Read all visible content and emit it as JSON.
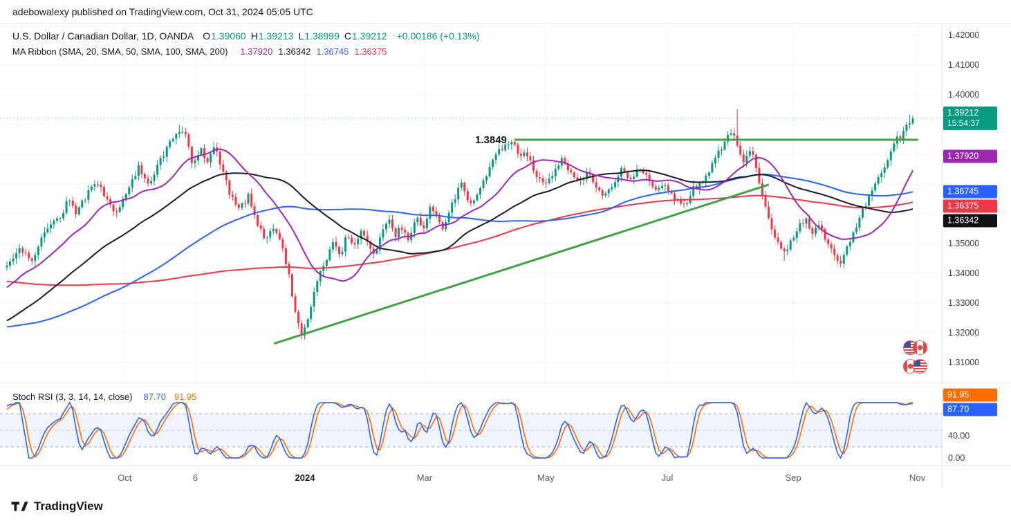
{
  "attribution": "adebowalexy published on TradingView.com, Oct 31, 2024 05:05 UTC",
  "logo_text": "TradingView",
  "header": {
    "symbol_title": "U.S. Dollar / Canadian Dollar, 1D, OANDA",
    "ohlc": [
      {
        "label": "O",
        "value": "1.39060"
      },
      {
        "label": "H",
        "value": "1.39213"
      },
      {
        "label": "L",
        "value": "1.38999"
      },
      {
        "label": "C",
        "value": "1.39212"
      }
    ],
    "change": "+0.00186 (+0.13%)",
    "up_color": "#089981",
    "down_color": "#f23645",
    "ma_label": "MA Ribbon (SMA, 20, SMA, 50, SMA, 100, SMA, 200)",
    "ma_values": [
      {
        "name": "SMA 20",
        "value": "1.37920",
        "color": "#9c27b0"
      },
      {
        "name": "SMA 50",
        "value": "1.36342",
        "color": "#131722"
      },
      {
        "name": "SMA 100",
        "value": "1.36745",
        "color": "#2962ff"
      },
      {
        "name": "SMA 200",
        "value": "1.36375",
        "color": "#f23645"
      }
    ]
  },
  "price_scale": {
    "ticks": [
      "1.42000",
      "1.41000",
      "1.40000",
      "1.35000",
      "1.34000",
      "1.33000",
      "1.32000",
      "1.31000"
    ],
    "badges": [
      {
        "name": "last-price",
        "label": "1.39212",
        "sub": "15:54:37",
        "color": "#089981",
        "price": 1.39212
      },
      {
        "name": "sma20",
        "label": "1.37920",
        "color": "#9c27b0",
        "price": 1.3792
      },
      {
        "name": "sma100",
        "label": "1.36745",
        "color": "#2962ff",
        "price": 1.36745
      },
      {
        "name": "sma200",
        "label": "1.36375",
        "color": "#f23645",
        "price": 1.36375
      },
      {
        "name": "sma50",
        "label": "1.36342",
        "color": "#0f1117",
        "price": 1.36342
      }
    ]
  },
  "stoch_panel": {
    "title": "Stoch RSI (3, 3, 14, 14, close)",
    "k_value": "87.70",
    "d_value": "91.95",
    "k_color": "#2962ff",
    "d_color": "#ff6d00",
    "badges": [
      {
        "label": "91.95",
        "color": "#ff6d00",
        "value": 91.95
      },
      {
        "label": "87.70",
        "color": "#2962ff",
        "value": 87.7
      }
    ],
    "ticks": [
      {
        "label": "40.00",
        "value": 40
      },
      {
        "label": "0.00",
        "value": 0
      }
    ]
  },
  "chart_data": [
    {
      "type": "candlestick",
      "title": "U.S. Dollar / Canadian Dollar, 1D, OANDA",
      "ohlc_current": {
        "open": 1.3906,
        "high": 1.39213,
        "low": 1.38999,
        "close": 1.39212,
        "change": 0.00186,
        "change_pct": 0.13
      },
      "last_price": 1.39212,
      "ylim": [
        1.3032,
        1.424
      ],
      "y_gridlines": [
        1.31,
        1.32,
        1.33,
        1.34,
        1.35,
        1.36,
        1.37,
        1.38,
        1.39,
        1.4,
        1.41,
        1.42
      ],
      "x_ticks": [
        {
          "label": "Oct",
          "f": 0.13
        },
        {
          "label": "6",
          "f": 0.208
        },
        {
          "label": "2024",
          "f": 0.329,
          "major": true
        },
        {
          "label": "Mar",
          "f": 0.461
        },
        {
          "label": "May",
          "f": 0.595
        },
        {
          "label": "Jul",
          "f": 0.729
        },
        {
          "label": "Sep",
          "f": 0.868
        },
        {
          "label": "Nov",
          "f": 1.005
        }
      ],
      "up_color": "#089981",
      "down_color": "#f23645",
      "n_candles": 290,
      "close_anchors": [
        [
          0.0,
          1.342
        ],
        [
          0.015,
          1.348
        ],
        [
          0.027,
          1.344
        ],
        [
          0.038,
          1.352
        ],
        [
          0.05,
          1.356
        ],
        [
          0.061,
          1.36
        ],
        [
          0.069,
          1.3655
        ],
        [
          0.076,
          1.36
        ],
        [
          0.088,
          1.3665
        ],
        [
          0.099,
          1.371
        ],
        [
          0.111,
          1.364
        ],
        [
          0.122,
          1.36
        ],
        [
          0.134,
          1.369
        ],
        [
          0.145,
          1.3755
        ],
        [
          0.156,
          1.37
        ],
        [
          0.168,
          1.377
        ],
        [
          0.179,
          1.383
        ],
        [
          0.189,
          1.388
        ],
        [
          0.197,
          1.386
        ],
        [
          0.205,
          1.377
        ],
        [
          0.214,
          1.382
        ],
        [
          0.221,
          1.378
        ],
        [
          0.231,
          1.383
        ],
        [
          0.238,
          1.374
        ],
        [
          0.248,
          1.365
        ],
        [
          0.258,
          1.362
        ],
        [
          0.267,
          1.366
        ],
        [
          0.276,
          1.357
        ],
        [
          0.286,
          1.351
        ],
        [
          0.294,
          1.356
        ],
        [
          0.302,
          1.35
        ],
        [
          0.309,
          1.343
        ],
        [
          0.315,
          1.333
        ],
        [
          0.321,
          1.324
        ],
        [
          0.326,
          1.319
        ],
        [
          0.33,
          1.323
        ],
        [
          0.337,
          1.331
        ],
        [
          0.345,
          1.339
        ],
        [
          0.353,
          1.345
        ],
        [
          0.36,
          1.35
        ],
        [
          0.368,
          1.346
        ],
        [
          0.376,
          1.353
        ],
        [
          0.383,
          1.348
        ],
        [
          0.391,
          1.355
        ],
        [
          0.398,
          1.35
        ],
        [
          0.406,
          1.346
        ],
        [
          0.414,
          1.3545
        ],
        [
          0.421,
          1.358
        ],
        [
          0.429,
          1.353
        ],
        [
          0.437,
          1.356
        ],
        [
          0.444,
          1.351
        ],
        [
          0.452,
          1.359
        ],
        [
          0.46,
          1.355
        ],
        [
          0.467,
          1.362
        ],
        [
          0.475,
          1.359
        ],
        [
          0.482,
          1.355
        ],
        [
          0.492,
          1.364
        ],
        [
          0.502,
          1.37
        ],
        [
          0.511,
          1.363
        ],
        [
          0.521,
          1.368
        ],
        [
          0.531,
          1.374
        ],
        [
          0.54,
          1.38
        ],
        [
          0.55,
          1.383
        ],
        [
          0.558,
          1.3848
        ],
        [
          0.566,
          1.378
        ],
        [
          0.573,
          1.3815
        ],
        [
          0.58,
          1.375
        ],
        [
          0.594,
          1.369
        ],
        [
          0.603,
          1.373
        ],
        [
          0.612,
          1.378
        ],
        [
          0.622,
          1.374
        ],
        [
          0.632,
          1.37
        ],
        [
          0.641,
          1.374
        ],
        [
          0.65,
          1.37
        ],
        [
          0.66,
          1.366
        ],
        [
          0.67,
          1.37
        ],
        [
          0.679,
          1.375
        ],
        [
          0.689,
          1.371
        ],
        [
          0.698,
          1.375
        ],
        [
          0.708,
          1.372
        ],
        [
          0.718,
          1.368
        ],
        [
          0.727,
          1.37
        ],
        [
          0.737,
          1.365
        ],
        [
          0.747,
          1.362
        ],
        [
          0.756,
          1.368
        ],
        [
          0.765,
          1.37
        ],
        [
          0.775,
          1.374
        ],
        [
          0.785,
          1.38
        ],
        [
          0.794,
          1.385
        ],
        [
          0.8,
          1.3875
        ],
        [
          0.806,
          1.383
        ],
        [
          0.813,
          1.378
        ],
        [
          0.821,
          1.382
        ],
        [
          0.828,
          1.374
        ],
        [
          0.836,
          1.364
        ],
        [
          0.843,
          1.356
        ],
        [
          0.851,
          1.35
        ],
        [
          0.859,
          1.346
        ],
        [
          0.866,
          1.351
        ],
        [
          0.874,
          1.356
        ],
        [
          0.882,
          1.358
        ],
        [
          0.889,
          1.354
        ],
        [
          0.897,
          1.356
        ],
        [
          0.905,
          1.351
        ],
        [
          0.912,
          1.347
        ],
        [
          0.92,
          1.343
        ],
        [
          0.927,
          1.348
        ],
        [
          0.935,
          1.354
        ],
        [
          0.943,
          1.36
        ],
        [
          0.95,
          1.365
        ],
        [
          0.958,
          1.37
        ],
        [
          0.966,
          1.374
        ],
        [
          0.973,
          1.379
        ],
        [
          0.981,
          1.3845
        ],
        [
          0.989,
          1.387
        ],
        [
          0.994,
          1.39
        ],
        [
          1.0,
          1.3921
        ]
      ],
      "wick_events": {
        "highs": [
          [
            0.189,
            1.3899
          ],
          [
            0.806,
            1.3953
          ],
          [
            0.997,
            1.3932
          ]
        ],
        "lows": [
          [
            0.326,
            1.3177
          ],
          [
            0.859,
            1.3441
          ],
          [
            0.92,
            1.3419
          ]
        ]
      },
      "history_len": 200,
      "history_anchors": [
        [
          0,
          1.368
        ],
        [
          0.45,
          1.341
        ],
        [
          0.62,
          1.318
        ],
        [
          0.8,
          1.31
        ],
        [
          1.0,
          1.342
        ]
      ],
      "overlays": [
        {
          "name": "SMA 20",
          "window": 20,
          "color": "#9c27b0",
          "current": 1.3792
        },
        {
          "name": "SMA 50",
          "window": 50,
          "color": "#171b26",
          "current": 1.36342
        },
        {
          "name": "SMA 100",
          "window": 100,
          "color": "#2962ff",
          "current": 1.36745
        },
        {
          "name": "SMA 200",
          "window": 200,
          "color": "#f23645",
          "current": 1.36375
        }
      ],
      "drawings": [
        {
          "kind": "hline",
          "price": 1.3849,
          "f1": 0.561,
          "f2": 1.006,
          "color": "#43a047",
          "width": 3,
          "label": "1.3849"
        },
        {
          "kind": "trendline",
          "f1": 0.295,
          "p1": 1.3163,
          "f2": 0.841,
          "p2": 1.3698,
          "color": "#43a047",
          "width": 3
        }
      ]
    },
    {
      "type": "line",
      "title": "Stoch RSI (3, 3, 14, 14, close)",
      "params": {
        "k_smooth": 3,
        "d_smooth": 3,
        "rsi_length": 14,
        "stoch_length": 14,
        "source": "close"
      },
      "series": [
        {
          "name": "%K",
          "color": "#2962ff",
          "current": 87.7
        },
        {
          "name": "%D",
          "color": "#ff6d00",
          "current": 91.95
        }
      ],
      "ylim": [
        0,
        100
      ],
      "bands": [
        20,
        80
      ],
      "midline": 50,
      "y_ticks": [
        {
          "label": "40.00",
          "value": 40
        },
        {
          "label": "0.00",
          "value": 0
        }
      ]
    }
  ]
}
